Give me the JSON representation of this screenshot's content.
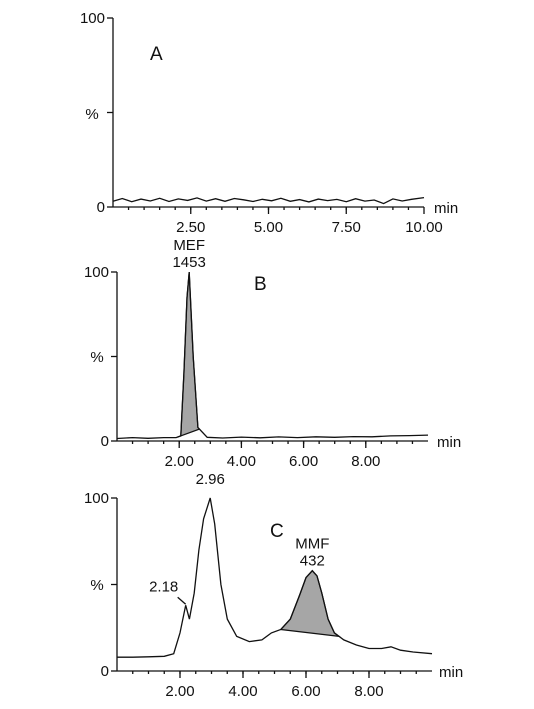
{
  "chart_data": [
    {
      "type": "line",
      "panel_label": "A",
      "xlabel": "min",
      "ylabel": "%",
      "xlim": [
        0,
        10.0
      ],
      "ylim": [
        0,
        100
      ],
      "x_tick_labels": [
        "2.50",
        "5.00",
        "7.50",
        "10.00"
      ],
      "x_ticks": [
        2.5,
        5.0,
        7.5,
        10.0
      ],
      "y_tick_labels": [
        "0",
        "100"
      ],
      "y_ticks": [
        0,
        100
      ],
      "series": [
        {
          "x": [
            0.0,
            0.3,
            0.6,
            0.9,
            1.2,
            1.5,
            1.8,
            2.1,
            2.4,
            2.7,
            3.0,
            3.3,
            3.6,
            3.9,
            4.2,
            4.5,
            4.8,
            5.1,
            5.4,
            5.7,
            6.0,
            6.3,
            6.6,
            6.9,
            7.2,
            7.5,
            7.8,
            8.1,
            8.4,
            8.7,
            9.0,
            9.3,
            9.6,
            10.0
          ],
          "y": [
            3.0,
            4.5,
            2.8,
            4.2,
            3.2,
            4.6,
            2.9,
            4.3,
            3.5,
            4.8,
            3.1,
            4.4,
            3.0,
            4.5,
            3.8,
            2.9,
            4.1,
            3.3,
            4.6,
            3.0,
            3.9,
            2.7,
            4.2,
            3.4,
            4.0,
            2.8,
            4.4,
            3.1,
            3.7,
            1.8,
            4.3,
            3.2,
            4.1,
            5.0
          ]
        }
      ],
      "peaks": []
    },
    {
      "type": "line",
      "panel_label": "B",
      "xlabel": "min",
      "ylabel": "%",
      "xlim": [
        0,
        10.0
      ],
      "ylim": [
        0,
        100
      ],
      "x_tick_labels": [
        "2.00",
        "4.00",
        "6.00",
        "8.00"
      ],
      "x_ticks": [
        2.0,
        4.0,
        6.0,
        8.0
      ],
      "y_tick_labels": [
        "0",
        "100"
      ],
      "y_ticks": [
        0,
        100
      ],
      "series": [
        {
          "x": [
            0.0,
            0.5,
            1.0,
            1.5,
            1.9,
            2.05,
            2.15,
            2.25,
            2.32,
            2.45,
            2.6,
            2.9,
            3.4,
            4.0,
            4.6,
            5.2,
            5.8,
            6.4,
            7.0,
            7.6,
            8.2,
            8.8,
            9.4,
            10.0
          ],
          "y": [
            1.5,
            2.0,
            1.6,
            2.0,
            2.0,
            3.0,
            40.0,
            85.0,
            100.0,
            50.0,
            8.0,
            2.2,
            1.8,
            2.3,
            1.9,
            2.4,
            2.0,
            2.5,
            2.2,
            2.6,
            2.5,
            3.0,
            3.2,
            3.5
          ]
        }
      ],
      "peaks": [
        {
          "name": "MEF",
          "value": "1453",
          "rt": 2.32,
          "start": 1.95,
          "end": 2.65
        }
      ]
    },
    {
      "type": "line",
      "panel_label": "C",
      "xlabel": "min",
      "ylabel": "%",
      "xlim": [
        0,
        10.0
      ],
      "ylim": [
        0,
        100
      ],
      "x_tick_labels": [
        "2.00",
        "4.00",
        "6.00",
        "8.00"
      ],
      "x_ticks": [
        2.0,
        4.0,
        6.0,
        8.0
      ],
      "y_tick_labels": [
        "0",
        "100"
      ],
      "y_ticks": [
        0,
        100
      ],
      "annotations": [
        "2.18",
        "2.96"
      ],
      "series": [
        {
          "x": [
            0.0,
            0.5,
            1.0,
            1.5,
            1.8,
            2.0,
            2.18,
            2.3,
            2.45,
            2.6,
            2.75,
            2.96,
            3.1,
            3.3,
            3.5,
            3.8,
            4.2,
            4.6,
            4.9,
            5.2,
            5.5,
            5.8,
            6.0,
            6.2,
            6.35,
            6.5,
            6.7,
            6.9,
            7.2,
            7.6,
            8.0,
            8.4,
            8.7,
            9.0,
            9.4,
            10.0
          ],
          "y": [
            8.0,
            8.0,
            8.2,
            8.5,
            10.0,
            22.0,
            38.0,
            30.0,
            45.0,
            70.0,
            88.0,
            100.0,
            85.0,
            50.0,
            30.0,
            20.0,
            17.0,
            18.0,
            22.0,
            24.0,
            30.0,
            44.0,
            54.0,
            58.0,
            55.0,
            45.0,
            30.0,
            22.0,
            18.0,
            15.0,
            13.0,
            13.0,
            14.0,
            12.0,
            11.0,
            10.0
          ]
        }
      ],
      "peaks": [
        {
          "name": "MMF",
          "value": "432",
          "rt": 6.2,
          "start": 5.2,
          "end": 7.05
        }
      ]
    }
  ]
}
